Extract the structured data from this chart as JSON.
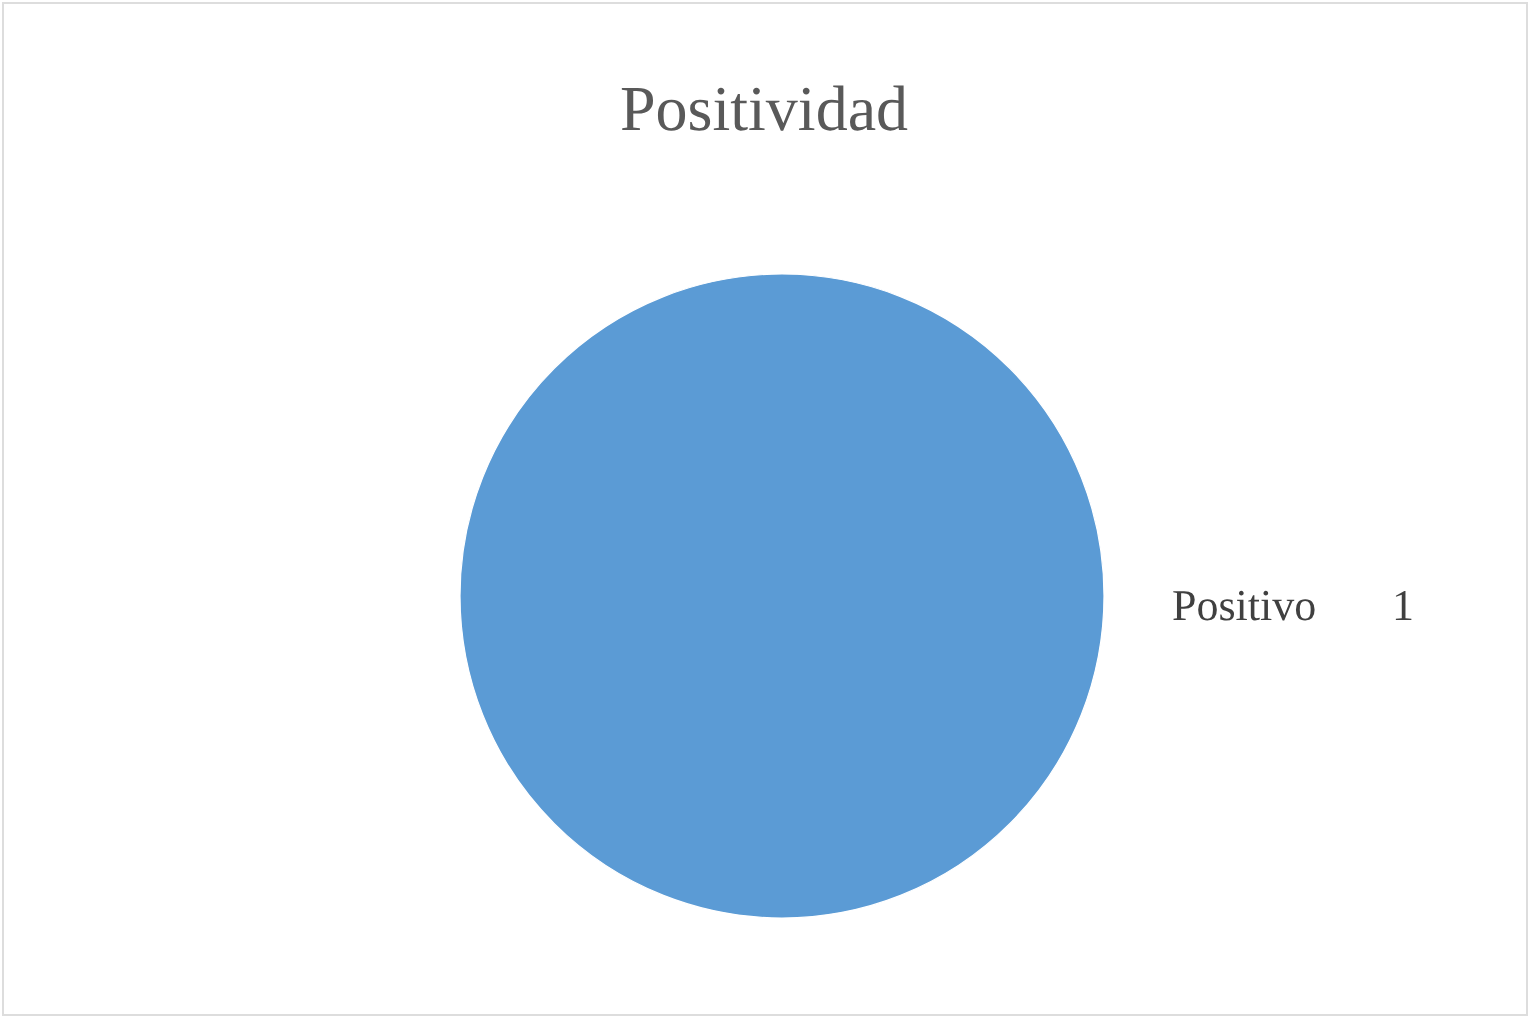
{
  "chart_data": {
    "type": "pie",
    "title": "Positividad",
    "categories": [
      "Positivo"
    ],
    "values": [
      1
    ],
    "colors": [
      "#5b9bd5"
    ],
    "data_labels": true
  }
}
